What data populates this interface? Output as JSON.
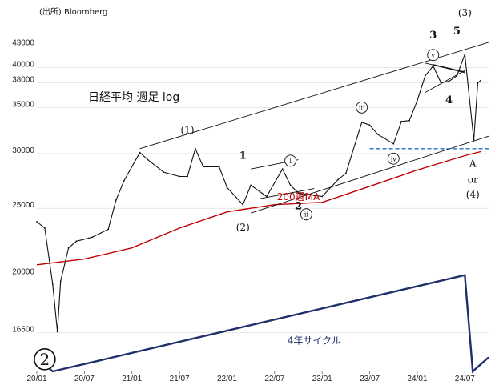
{
  "chart_data": {
    "type": "line",
    "source": "(出所) Bloomberg",
    "title": "日経平均 週足 log",
    "y_scale": "log",
    "ylim": [
      14500,
      47000
    ],
    "y_ticks": [
      {
        "value": 43000,
        "label": "43000"
      },
      {
        "value": 40000,
        "label": "40000"
      },
      {
        "value": 38000,
        "label": "38000"
      },
      {
        "value": 35000,
        "label": "35000"
      },
      {
        "value": 30000,
        "label": "30000"
      },
      {
        "value": 25000,
        "label": "25000"
      },
      {
        "value": 20000,
        "label": "20000"
      },
      {
        "value": 16500,
        "label": "16500"
      }
    ],
    "xlim": [
      "2020-01",
      "2024-10"
    ],
    "x_ticks": [
      {
        "value": "2020-01",
        "label": "20/01"
      },
      {
        "value": "2020-07",
        "label": "20/07"
      },
      {
        "value": "2021-01",
        "label": "21/01"
      },
      {
        "value": "2021-07",
        "label": "21/07"
      },
      {
        "value": "2022-01",
        "label": "22/01"
      },
      {
        "value": "2022-07",
        "label": "22/07"
      },
      {
        "value": "2023-01",
        "label": "23/01"
      },
      {
        "value": "2023-07",
        "label": "23/07"
      },
      {
        "value": "2024-01",
        "label": "24/01"
      },
      {
        "value": "2024-07",
        "label": "24/07"
      }
    ],
    "price_series": {
      "x": [
        "2020-01",
        "2020-02",
        "2020-03",
        "2020-03-19",
        "2020-04",
        "2020-05",
        "2020-06",
        "2020-08",
        "2020-10",
        "2020-11",
        "2020-12",
        "2021-02",
        "2021-03",
        "2021-05",
        "2021-07",
        "2021-08",
        "2021-09",
        "2021-10",
        "2021-12",
        "2022-01",
        "2022-03",
        "2022-04",
        "2022-06",
        "2022-08",
        "2022-09",
        "2022-10",
        "2022-12",
        "2023-01",
        "2023-03",
        "2023-04",
        "2023-06",
        "2023-07",
        "2023-08",
        "2023-10",
        "2023-11",
        "2023-12",
        "2024-01",
        "2024-02",
        "2024-03",
        "2024-04",
        "2024-05",
        "2024-06",
        "2024-07",
        "2024-08-05",
        "2024-08-20",
        "2024-09"
      ],
      "values": [
        23900,
        23400,
        19400,
        16550,
        19600,
        21900,
        22400,
        22700,
        23300,
        25700,
        27400,
        30100,
        29400,
        28200,
        27800,
        27800,
        30500,
        28700,
        28700,
        26800,
        25300,
        27000,
        26000,
        28500,
        27000,
        26300,
        26100,
        26000,
        27500,
        28100,
        33300,
        33000,
        32000,
        31000,
        33400,
        33500,
        35800,
        38900,
        40200,
        38000,
        38200,
        38900,
        41800,
        31400,
        38000,
        38300
      ]
    },
    "ma_series": {
      "name": "200週MA",
      "x": [
        "2020-01",
        "2020-07",
        "2021-01",
        "2021-07",
        "2022-01",
        "2022-07",
        "2023-01",
        "2023-07",
        "2024-01",
        "2024-07",
        "2024-09"
      ],
      "values": [
        20700,
        21100,
        21900,
        23400,
        24700,
        25300,
        25500,
        26900,
        28400,
        29800,
        30200
      ]
    },
    "cycle_series": {
      "name": "4年サイクル",
      "x": [
        "2020-01",
        "2020-03",
        "2024-07",
        "2024-08",
        "2024-10"
      ],
      "values": [
        15200,
        14500,
        20000,
        14500,
        15200
      ]
    },
    "trendlines": [
      {
        "x": [
          "2021-02",
          "2024-10"
        ],
        "values": [
          30500,
          43500
        ]
      },
      {
        "x": [
          "2022-04",
          "2024-10"
        ],
        "values": [
          24600,
          31800
        ]
      },
      {
        "x": [
          "2022-04",
          "2022-10"
        ],
        "values": [
          28500,
          29400
        ]
      },
      {
        "x": [
          "2022-05",
          "2022-12"
        ],
        "values": [
          25800,
          26700
        ]
      },
      {
        "x": [
          "2024-02",
          "2024-07"
        ],
        "values": [
          40600,
          39300
        ]
      },
      {
        "x": [
          "2024-02",
          "2024-07"
        ],
        "values": [
          36800,
          39600
        ]
      },
      {
        "x": [
          "2024-03",
          "2024-07"
        ],
        "values": [
          40400,
          39400
        ]
      }
    ],
    "hline": {
      "value": 30500,
      "x": [
        "2023-07",
        "2024-10"
      ],
      "color": "#1f6fc0",
      "style": "dashed"
    },
    "annotations": [
      {
        "text": "(1)",
        "x": "2021-08",
        "y": 32100,
        "circled": false
      },
      {
        "text": "(2)",
        "x": "2022-03",
        "y": 23200,
        "circled": false
      },
      {
        "text": "(3)",
        "x": "2024-07",
        "y": 47500,
        "circled": false
      },
      {
        "text": "(4)",
        "x": "2024-08",
        "y": 25900,
        "circled": false
      },
      {
        "text": "1",
        "x": "2022-03",
        "y": 29500,
        "circled": false,
        "bold": true
      },
      {
        "text": "2",
        "x": "2022-10",
        "y": 24900,
        "circled": false,
        "bold": true
      },
      {
        "text": "3",
        "x": "2024-03",
        "y": 44100,
        "circled": false,
        "bold": true
      },
      {
        "text": "4",
        "x": "2024-05",
        "y": 35500,
        "circled": false,
        "bold": true
      },
      {
        "text": "5",
        "x": "2024-06",
        "y": 44700,
        "circled": false,
        "bold": true
      },
      {
        "text": "A",
        "x": "2024-08",
        "y": 28700,
        "circled": false
      },
      {
        "text": "or",
        "x": "2024-08",
        "y": 27200,
        "circled": false
      },
      {
        "text": "i",
        "x": "2022-09",
        "y": 29300,
        "circled": true
      },
      {
        "text": "ii",
        "x": "2022-11",
        "y": 24500,
        "circled": true
      },
      {
        "text": "iii",
        "x": "2023-06",
        "y": 35000,
        "circled": true
      },
      {
        "text": "iv",
        "x": "2023-10",
        "y": 29500,
        "circled": true
      },
      {
        "text": "v",
        "x": "2024-03",
        "y": 41700,
        "circled": true
      },
      {
        "text": "200週MA",
        "x": "2022-10",
        "y": 25700,
        "circled": false,
        "color": "#c00000"
      },
      {
        "text": "4年サイクル",
        "x": "2022-12",
        "y": 15900,
        "circled": false,
        "color": "#1f2f6a"
      },
      {
        "text": "2",
        "x": "2020-02",
        "y": 15100,
        "circled": true,
        "large": true
      }
    ],
    "colors": {
      "price": "#111111",
      "ma": "#c00000",
      "cycle": "#1f2f6a",
      "trend": "#111111",
      "hline": "#1f6fc0",
      "grid": "#d8d8d8"
    },
    "grid": true,
    "legend": "none"
  }
}
